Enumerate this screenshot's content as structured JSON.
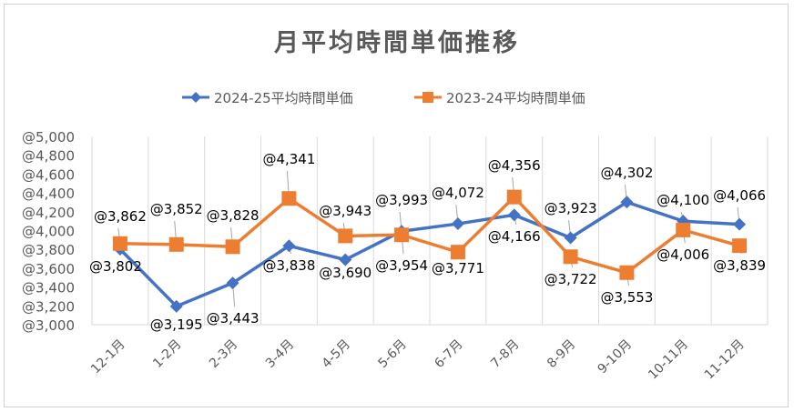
{
  "chart_data": {
    "type": "line",
    "title": "月平均時間単価推移",
    "xlabel": "",
    "ylabel": "",
    "ylim": [
      3000,
      5000
    ],
    "ytick_step": 200,
    "yticks": [
      "@3,000",
      "@3,200",
      "@3,400",
      "@3,600",
      "@3,800",
      "@4,000",
      "@4,200",
      "@4,400",
      "@4,600",
      "@4,800",
      "@5,000"
    ],
    "grid": "vertical",
    "legend_position": "top",
    "categories": [
      "12-1月",
      "1-2月",
      "2-3月",
      "3-4月",
      "4-5月",
      "5-6月",
      "6-7月",
      "7-8月",
      "8-9月",
      "9-10月",
      "10-11月",
      "11-12月"
    ],
    "series": [
      {
        "name": "2024-25平均時間単価",
        "color": "#4472C4",
        "marker": "diamond",
        "values": [
          3802,
          3195,
          3443,
          3838,
          3690,
          3993,
          4072,
          4166,
          3923,
          4302,
          4100,
          4066
        ],
        "labels": [
          "@3,802",
          "@3,195",
          "@3,443",
          "@3,838",
          "@3,690",
          "@3,993",
          "@4,072",
          "@4,166",
          "@3,923",
          "@4,302",
          "@4,100",
          "@4,066"
        ]
      },
      {
        "name": "2023-24平均時間単価",
        "color": "#ED7D31",
        "marker": "square",
        "values": [
          3862,
          3852,
          3828,
          4341,
          3943,
          3954,
          3771,
          4356,
          3722,
          3553,
          4006,
          3839
        ],
        "labels": [
          "@3,862",
          "@3,852",
          "@3,828",
          "@4,341",
          "@3,943",
          "@3,954",
          "@3,771",
          "@4,356",
          "@3,722",
          "@3,553",
          "@4,006",
          "@3,839"
        ]
      }
    ]
  }
}
